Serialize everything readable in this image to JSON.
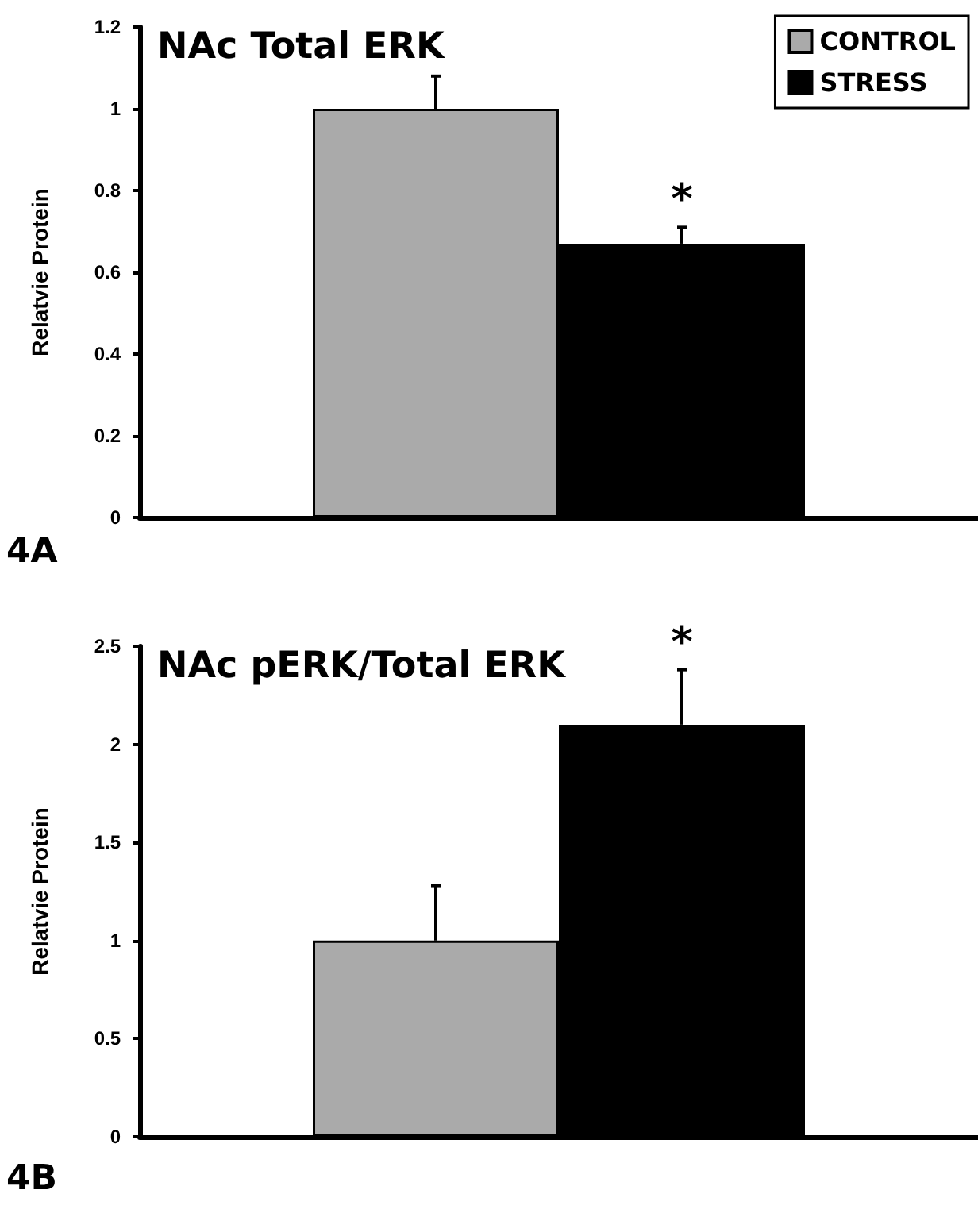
{
  "chart_data": [
    {
      "type": "bar",
      "title": "NAc Total ERK",
      "ylabel": "Relatvie Protein",
      "categories": [
        null
      ],
      "series": [
        {
          "name": "CONTROL",
          "color": "#aaaaaa",
          "values": [
            1
          ],
          "errors": [
            [
              1,
              1.08
            ]
          ]
        },
        {
          "name": "STRESS",
          "color": "#000000",
          "values": [
            0.67
          ],
          "errors": [
            [
              0.67,
              0.71
            ]
          ]
        }
      ],
      "ylim": [
        0,
        1.2
      ],
      "yticks": [
        0,
        0.2,
        0.4,
        0.6,
        0.8,
        1,
        1.2
      ],
      "grid": false,
      "legend": "top right",
      "annotations": [
        "*",
        "4A"
      ]
    },
    {
      "type": "bar",
      "title": "NAc pERK/Total ERK",
      "ylabel": "Relatvie Protein",
      "categories": [
        null
      ],
      "series": [
        {
          "color": "#aaaaaa",
          "values": [
            1
          ],
          "errors": [
            [
              1,
              1.28
            ]
          ]
        },
        {
          "color": "#000000",
          "values": [
            2.1
          ],
          "errors": [
            [
              2.1,
              2.38
            ]
          ]
        }
      ],
      "ylim": [
        0,
        2.5
      ],
      "yticks": [
        0,
        0.5,
        1,
        1.5,
        2,
        2.5
      ],
      "grid": false,
      "annotations": [
        "*",
        "4B"
      ]
    }
  ]
}
